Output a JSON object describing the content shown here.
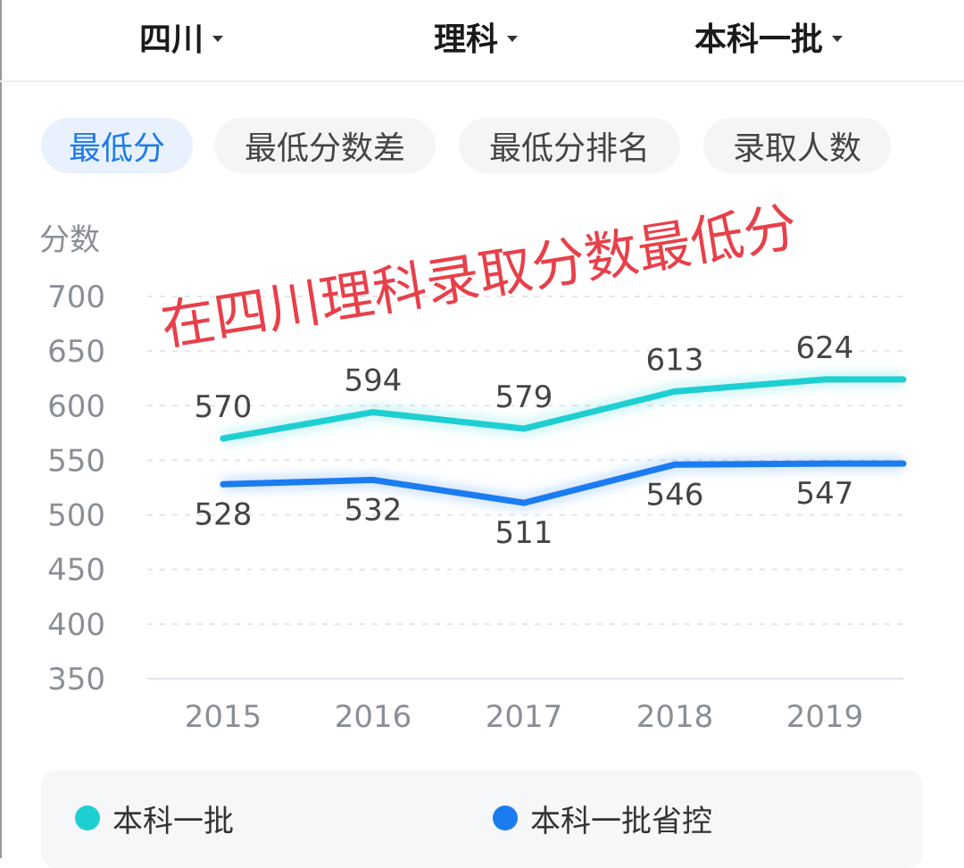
{
  "filters": [
    {
      "label": "四川"
    },
    {
      "label": "理科"
    },
    {
      "label": "本科一批"
    }
  ],
  "tabs": [
    {
      "label": "最低分",
      "active": true
    },
    {
      "label": "最低分数差",
      "active": false
    },
    {
      "label": "最低分排名",
      "active": false
    },
    {
      "label": "录取人数",
      "active": false
    }
  ],
  "overlay_caption": "在四川理科录取分数最低分",
  "colors": {
    "accent": "#1e7be6",
    "series_cyan": "#1ecfd2",
    "series_blue": "#1a7cf0",
    "overlay_text": "#e8404a"
  },
  "chart_data": {
    "type": "line",
    "ylabel": "分数",
    "ylim": [
      350,
      700
    ],
    "yticks": [
      "700",
      "650",
      "600",
      "550",
      "500",
      "450",
      "400",
      "350"
    ],
    "categories": [
      "2015",
      "2016",
      "2017",
      "2018",
      "2019"
    ],
    "grid": true,
    "legend_position": "bottom",
    "series": [
      {
        "name": "本科一批",
        "color": "#1ecfd2",
        "values": [
          570,
          594,
          579,
          613,
          624
        ],
        "labels": [
          "570",
          "594",
          "579",
          "613",
          "624"
        ]
      },
      {
        "name": "本科一批省控",
        "color": "#1a7cf0",
        "values": [
          528,
          532,
          511,
          546,
          547
        ],
        "labels": [
          "528",
          "532",
          "511",
          "546",
          "547"
        ]
      }
    ]
  }
}
